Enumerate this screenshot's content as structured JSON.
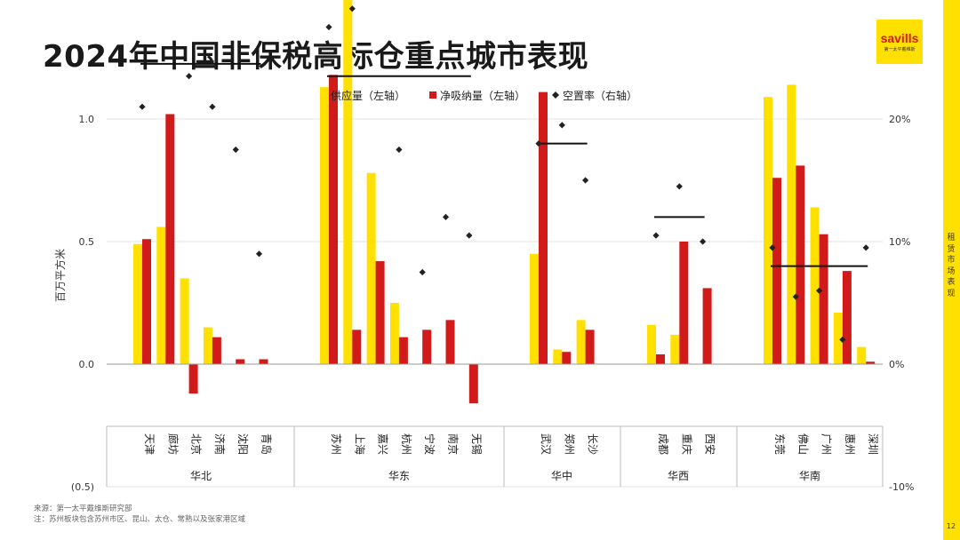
{
  "page": {
    "title": "2024年中国非保税高标仓重点城市表现",
    "logo_text": "savills",
    "logo_subtext": "第一太平戴维斯",
    "side_label": "租赁市场表现",
    "page_number": "12",
    "source_note": "来源：第一太平戴维斯研究部",
    "footnote": "注：苏州板块包含苏州市区、昆山、太仓、常熟以及张家港区域"
  },
  "chart_data": {
    "type": "bar",
    "title": "",
    "ylabel": "百万平方米",
    "ylim": [
      -0.5,
      2.0
    ],
    "yticks": [
      "(0.5)",
      "0.0",
      "0.5",
      "1.0",
      "1.5",
      "2.0"
    ],
    "y2lim": [
      -10,
      40
    ],
    "y2ticks": [
      "-10%",
      "0%",
      "10%",
      "20%",
      "30%",
      "40%"
    ],
    "legend_position": "top-center",
    "colors": {
      "supply": "#FFE000",
      "absorption": "#D11A1A",
      "vacancy": "#222222",
      "avg_line": "#111111"
    },
    "categories": [
      "天津",
      "廊坊",
      "北京",
      "济南",
      "沈阳",
      "青岛",
      "苏州",
      "上海",
      "嘉兴",
      "杭州",
      "宁波",
      "南京",
      "无锡",
      "武汉",
      "郑州",
      "长沙",
      "成都",
      "重庆",
      "西安",
      "东莞",
      "佛山",
      "广州",
      "惠州",
      "深圳"
    ],
    "series": [
      {
        "name": "供应量（左轴）",
        "type": "bar",
        "axis": "left",
        "values": [
          0.49,
          0.56,
          0.35,
          0.15,
          null,
          null,
          1.13,
          1.49,
          0.78,
          0.25,
          null,
          null,
          null,
          0.45,
          0.06,
          0.18,
          0.16,
          0.12,
          null,
          1.09,
          1.14,
          0.64,
          0.21,
          0.07
        ]
      },
      {
        "name": "净吸纳量（左轴）",
        "type": "bar",
        "axis": "left",
        "values": [
          0.51,
          1.02,
          -0.12,
          0.11,
          0.02,
          0.02,
          1.18,
          0.14,
          0.42,
          0.11,
          0.14,
          0.18,
          -0.16,
          1.11,
          0.05,
          0.14,
          0.04,
          0.5,
          0.31,
          0.76,
          0.81,
          0.53,
          0.38,
          0.01
        ]
      },
      {
        "name": "空置率（右轴）",
        "type": "scatter",
        "axis": "right",
        "values": [
          21,
          38.5,
          23.5,
          21,
          17.5,
          9,
          27.5,
          29,
          32,
          17.5,
          7.5,
          12,
          10.5,
          18,
          19.5,
          15,
          10.5,
          14.5,
          10,
          9.5,
          5.5,
          6,
          2,
          9.5
        ]
      }
    ],
    "regions": [
      {
        "name": "华北",
        "start": 0,
        "end": 5,
        "avg_vacancy": 24.5
      },
      {
        "name": "华东",
        "start": 6,
        "end": 12,
        "avg_vacancy": 23.5
      },
      {
        "name": "华中",
        "start": 13,
        "end": 15,
        "avg_vacancy": 18
      },
      {
        "name": "华西",
        "start": 16,
        "end": 18,
        "avg_vacancy": 12
      },
      {
        "name": "华南",
        "start": 19,
        "end": 23,
        "avg_vacancy": 8
      }
    ]
  }
}
